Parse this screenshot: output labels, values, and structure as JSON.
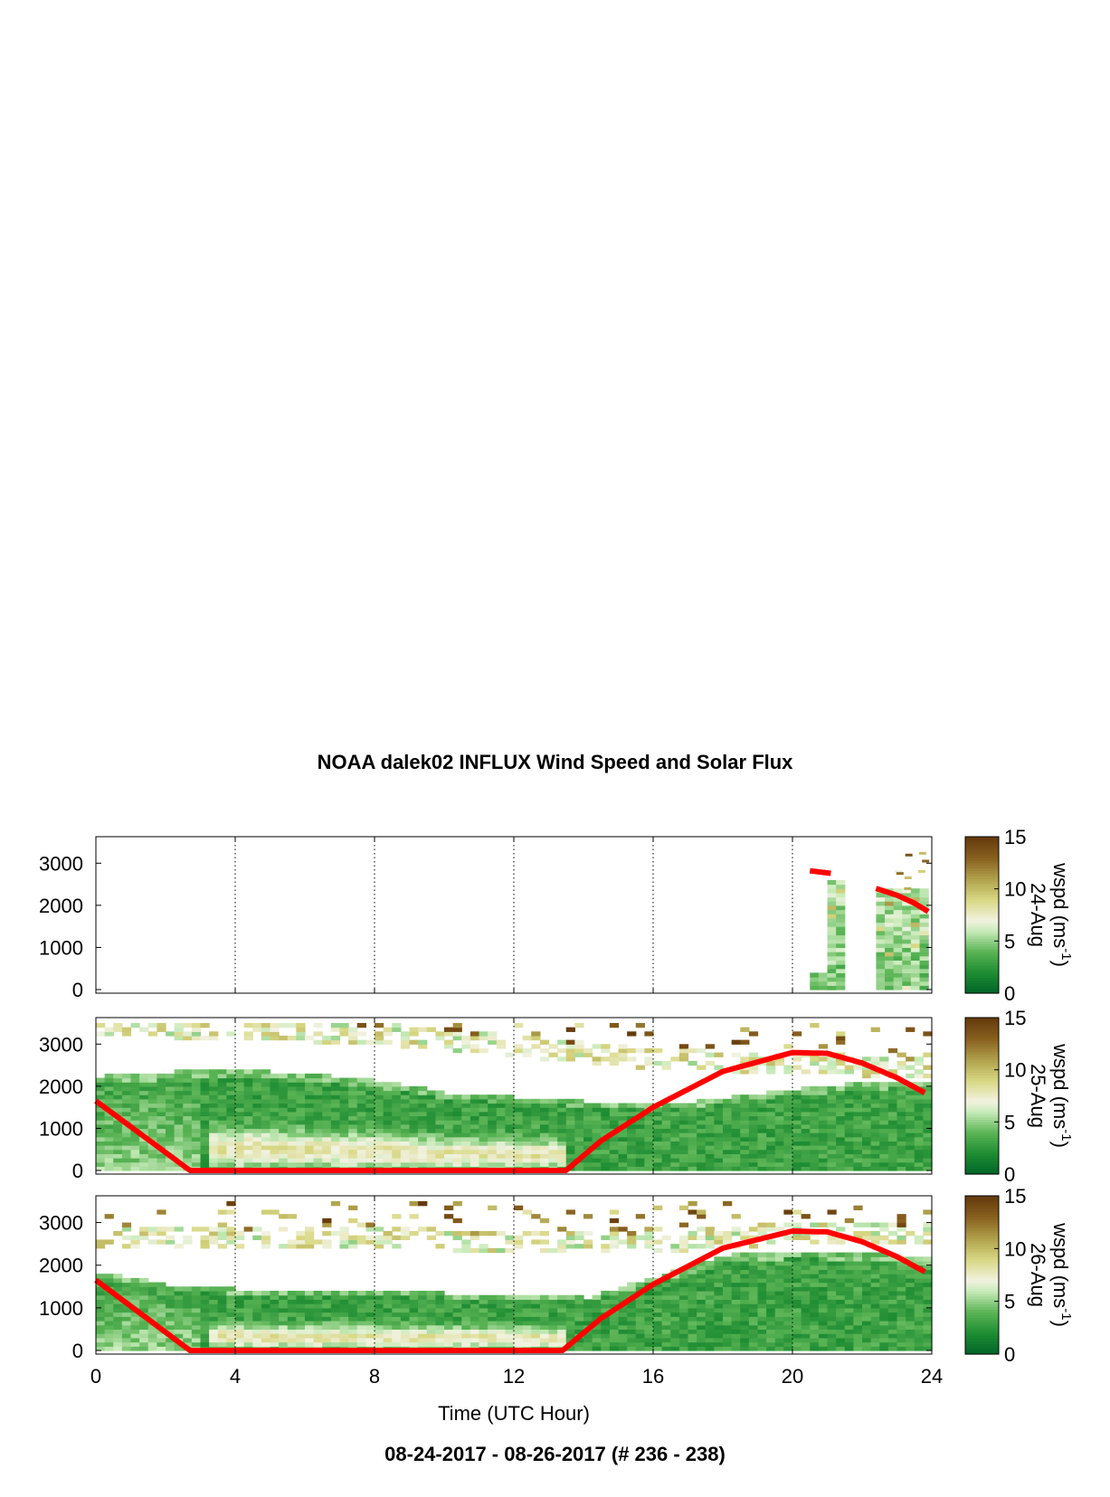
{
  "title": "NOAA dalek02 INFLUX Wind Speed and Solar Flux",
  "footer": "08-24-2017 - 08-26-2017   (# 236 - 238)",
  "xlabel": "Time (UTC Hour)",
  "colors": {
    "solar_flux_line": "#ff0000",
    "colormap_low": "#006d2c",
    "colormap_mid": "#f2f2e6",
    "colormap_high": "#6b3f0f",
    "frame": "#000000",
    "gridline": "#000000"
  },
  "chart_data": [
    {
      "type": "heatmap",
      "panel": "24-Aug",
      "colorbar_label": "wspd (ms",
      "colorbar_label_superscript": "-1",
      "colorbar_label_close": ")",
      "colorbar_date": "24-Aug",
      "xlim": [
        0,
        24
      ],
      "ylim": [
        0,
        3500
      ],
      "x_ticks": [
        0,
        4,
        8,
        12,
        16,
        20,
        24
      ],
      "y_ticks": [
        0,
        1000,
        2000,
        3000
      ],
      "colorbar_range": [
        0,
        15
      ],
      "colorbar_ticks": [
        0,
        5,
        10,
        15
      ],
      "grid": "vertical dotted at 4, 8, 12, 16, 20",
      "data_columns": [
        {
          "x_start": 20.5,
          "x_end": 21.2,
          "top": 350,
          "level": 2
        },
        {
          "x_start": 21.0,
          "x_end": 21.3,
          "top": 2600,
          "level": 3
        },
        {
          "x_start": 22.4,
          "x_end": 23.9,
          "top": 2400,
          "level": 3
        }
      ],
      "solar_flux_segments": [
        [
          [
            20.5,
            2820
          ],
          [
            21.1,
            2760
          ]
        ],
        [
          [
            22.4,
            2400
          ],
          [
            23.0,
            2240
          ],
          [
            23.5,
            2050
          ],
          [
            23.9,
            1850
          ]
        ]
      ]
    },
    {
      "type": "heatmap",
      "panel": "25-Aug",
      "colorbar_label": "wspd (ms",
      "colorbar_label_superscript": "-1",
      "colorbar_label_close": ")",
      "colorbar_date": "25-Aug",
      "xlim": [
        0,
        24
      ],
      "ylim": [
        0,
        3500
      ],
      "x_ticks": [
        0,
        4,
        8,
        12,
        16,
        20,
        24
      ],
      "y_ticks": [
        0,
        1000,
        2000,
        3000
      ],
      "colorbar_range": [
        0,
        15
      ],
      "colorbar_ticks": [
        0,
        5,
        10,
        15
      ],
      "grid": "vertical dotted at 4, 8, 12, 16, 20",
      "boundary_layer_top": [
        [
          0,
          2200
        ],
        [
          2,
          2300
        ],
        [
          4,
          2350
        ],
        [
          6,
          2250
        ],
        [
          8,
          2100
        ],
        [
          10,
          1800
        ],
        [
          12,
          1700
        ],
        [
          14,
          1600
        ],
        [
          16,
          1500
        ],
        [
          18,
          1700
        ],
        [
          20,
          1900
        ],
        [
          22,
          2050
        ],
        [
          23.9,
          2100
        ]
      ],
      "upper_layer": [
        [
          0,
          3400
        ],
        [
          4,
          3300
        ],
        [
          8,
          3200
        ],
        [
          12,
          2900
        ],
        [
          16,
          2600
        ],
        [
          20,
          2500
        ],
        [
          23.9,
          2400
        ]
      ],
      "solar_flux_curve": [
        [
          0,
          1650
        ],
        [
          2.7,
          0
        ],
        [
          13.5,
          0
        ],
        [
          14.5,
          700
        ],
        [
          16,
          1500
        ],
        [
          18,
          2350
        ],
        [
          20,
          2800
        ],
        [
          21,
          2780
        ],
        [
          22,
          2550
        ],
        [
          23,
          2200
        ],
        [
          23.9,
          1800
        ]
      ]
    },
    {
      "type": "heatmap",
      "panel": "26-Aug",
      "colorbar_label": "wspd (ms",
      "colorbar_label_superscript": "-1",
      "colorbar_label_close": ")",
      "colorbar_date": "26-Aug",
      "xlim": [
        0,
        24
      ],
      "ylim": [
        0,
        3500
      ],
      "x_ticks": [
        0,
        4,
        8,
        12,
        16,
        20,
        24
      ],
      "y_ticks": [
        0,
        1000,
        2000,
        3000
      ],
      "colorbar_range": [
        0,
        15
      ],
      "colorbar_ticks": [
        0,
        5,
        10,
        15
      ],
      "grid": "vertical dotted at 4, 8, 12, 16, 20",
      "boundary_layer_top": [
        [
          0,
          1800
        ],
        [
          2,
          1500
        ],
        [
          4,
          1400
        ],
        [
          8,
          1350
        ],
        [
          12,
          1250
        ],
        [
          14,
          1200
        ],
        [
          16,
          1700
        ],
        [
          18,
          2200
        ],
        [
          20,
          2300
        ],
        [
          22,
          2250
        ],
        [
          23.9,
          2100
        ]
      ],
      "upper_layer": [
        [
          0,
          2600
        ],
        [
          4,
          2600
        ],
        [
          8,
          2600
        ],
        [
          12,
          2500
        ],
        [
          16,
          2500
        ],
        [
          20,
          2700
        ],
        [
          23.9,
          2700
        ]
      ],
      "solar_flux_curve": [
        [
          0,
          1650
        ],
        [
          2.7,
          0
        ],
        [
          13.4,
          0
        ],
        [
          14.5,
          750
        ],
        [
          16,
          1550
        ],
        [
          18,
          2400
        ],
        [
          20,
          2800
        ],
        [
          21,
          2780
        ],
        [
          22,
          2550
        ],
        [
          23,
          2200
        ],
        [
          23.9,
          1800
        ]
      ]
    }
  ]
}
